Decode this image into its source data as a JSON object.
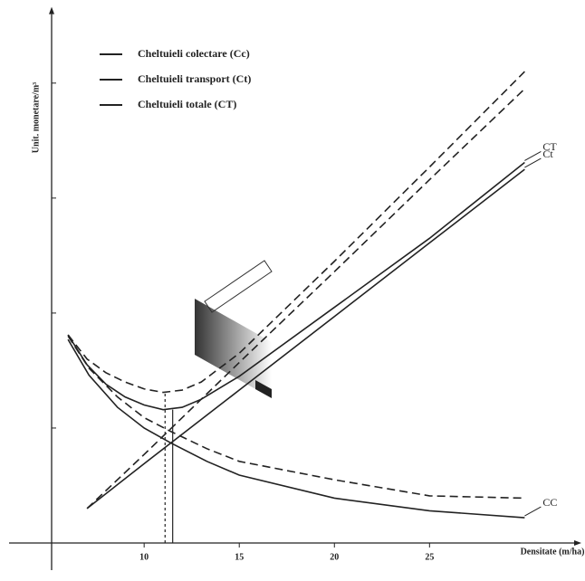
{
  "chart_data": {
    "type": "line",
    "xlabel": "Densitate (m/ha)",
    "ylabel": "Unit. monetare/m³",
    "xlim": [
      2.9,
      32.6
    ],
    "ylim": [
      0,
      4.6
    ],
    "xticks": [
      10,
      15,
      20,
      25
    ],
    "yticks": [
      1,
      2,
      3,
      4
    ],
    "legend": "upper left",
    "series": [
      {
        "name": "Cheltuieli colectare (Cc)",
        "label": "CC",
        "color": "#222222",
        "x": [
          6,
          7.1,
          8.6,
          10,
          11.4,
          13.3,
          15,
          20,
          25,
          30
        ],
        "values": [
          1.77,
          1.46,
          1.18,
          1.0,
          0.87,
          0.71,
          0.59,
          0.39,
          0.28,
          0.22
        ],
        "dashed_values": [
          1.8,
          1.52,
          1.27,
          1.09,
          0.97,
          0.82,
          0.71,
          0.55,
          0.41,
          0.39
        ]
      },
      {
        "name": "Cheltuieli transport (Ct)",
        "label": "Ct",
        "color": "#222222",
        "x": [
          7,
          10,
          15,
          20,
          25,
          30
        ],
        "values": [
          0.3,
          0.69,
          1.33,
          1.97,
          2.61,
          3.25
        ],
        "dashed_values": [
          0.3,
          0.77,
          1.57,
          2.36,
          3.16,
          3.95
        ]
      },
      {
        "name": "Cheltuieli totale (CT)",
        "label": "CT",
        "color": "#222222",
        "x": [
          6,
          7,
          8,
          9,
          10,
          11,
          12,
          13,
          15,
          20,
          25,
          30
        ],
        "values": [
          1.81,
          1.55,
          1.38,
          1.27,
          1.2,
          1.16,
          1.18,
          1.25,
          1.45,
          2.05,
          2.65,
          3.31
        ],
        "dashed_values": [
          1.81,
          1.6,
          1.48,
          1.4,
          1.34,
          1.31,
          1.33,
          1.4,
          1.65,
          2.45,
          3.27,
          4.1
        ]
      }
    ],
    "min_lines": [
      {
        "x": 11.1,
        "y": 1.31,
        "dashed": true
      },
      {
        "x": 11.5,
        "y": 1.16,
        "dashed": false
      }
    ]
  }
}
